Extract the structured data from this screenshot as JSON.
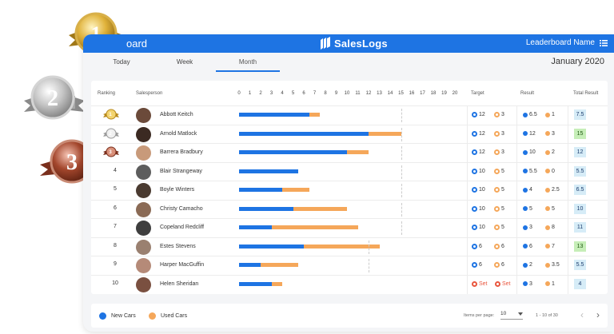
{
  "app": {
    "title_partial": "oard",
    "brand": "SalesLogs",
    "leaderboard_label": "Leaderboard Name",
    "accent": "#1e74e3"
  },
  "tabs": [
    {
      "label": "Today",
      "active": false
    },
    {
      "label": "Week",
      "active": false
    },
    {
      "label": "Month",
      "active": true
    }
  ],
  "period": "January 2020",
  "medals": [
    "1",
    "2",
    "3"
  ],
  "table": {
    "headers": {
      "ranking": "Ranking",
      "salesperson": "Salesperson",
      "target": "Target",
      "result": "Result",
      "total": "Total Result"
    },
    "scale": [
      "0",
      "1",
      "2",
      "3",
      "4",
      "5",
      "6",
      "7",
      "8",
      "9",
      "10",
      "11",
      "12",
      "13",
      "14",
      "15",
      "16",
      "17",
      "18",
      "19",
      "20"
    ],
    "rows": [
      {
        "rank": "1",
        "medal": "gold",
        "name": "Abbott Keitch",
        "new": 6.5,
        "used": 1,
        "target_new": "12",
        "target_used": "3",
        "result_new": "6.5",
        "result_used": "1",
        "total": "7.5",
        "highlight": false
      },
      {
        "rank": "2",
        "medal": "silver",
        "name": "Arnold Matlock",
        "new": 12,
        "used": 3,
        "target_new": "12",
        "target_used": "3",
        "result_new": "12",
        "result_used": "3",
        "total": "15",
        "highlight": true
      },
      {
        "rank": "3",
        "medal": "bronze",
        "name": "Barrera Bradbury",
        "new": 10,
        "used": 2,
        "target_new": "12",
        "target_used": "3",
        "result_new": "10",
        "result_used": "2",
        "total": "12",
        "highlight": false
      },
      {
        "rank": "4",
        "medal": "",
        "name": "Blair Strangeway",
        "new": 5.5,
        "used": 0,
        "target_new": "10",
        "target_used": "5",
        "result_new": "5.5",
        "result_used": "0",
        "total": "5.5",
        "highlight": false
      },
      {
        "rank": "5",
        "medal": "",
        "name": "Boyle Winters",
        "new": 4,
        "used": 2.5,
        "target_new": "10",
        "target_used": "5",
        "result_new": "4",
        "result_used": "2.5",
        "total": "6.5",
        "highlight": false
      },
      {
        "rank": "6",
        "medal": "",
        "name": "Christy Camacho",
        "new": 5,
        "used": 5,
        "target_new": "10",
        "target_used": "5",
        "result_new": "5",
        "result_used": "5",
        "total": "10",
        "highlight": false
      },
      {
        "rank": "7",
        "medal": "",
        "name": "Copeland Redcliff",
        "new": 3,
        "used": 8,
        "target_new": "10",
        "target_used": "5",
        "result_new": "3",
        "result_used": "8",
        "total": "11",
        "highlight": false
      },
      {
        "rank": "8",
        "medal": "",
        "name": "Estes Stevens",
        "new": 6,
        "used": 7,
        "target_new": "6",
        "target_used": "6",
        "result_new": "6",
        "result_used": "7",
        "total": "13",
        "highlight": true
      },
      {
        "rank": "9",
        "medal": "",
        "name": "Harper MacGuffin",
        "new": 2,
        "used": 3.5,
        "target_new": "6",
        "target_used": "6",
        "result_new": "2",
        "result_used": "3.5",
        "total": "5.5",
        "highlight": false
      },
      {
        "rank": "10",
        "medal": "",
        "name": "Helen Sheridan",
        "new": 3,
        "used": 1,
        "target_new": "Set",
        "target_used": "Set",
        "result_new": "3",
        "result_used": "1",
        "total": "4",
        "highlight": false
      }
    ],
    "target_markers": [
      15,
      15,
      15,
      15,
      15,
      15,
      15,
      12,
      12,
      0
    ]
  },
  "legend": {
    "new": "New Cars",
    "used": "Used Cars",
    "new_color": "#1e74e3",
    "used_color": "#f5a75a"
  },
  "pagination": {
    "items_label": "Items per page:",
    "per_page": "10",
    "range": "1 - 10 of 30"
  }
}
